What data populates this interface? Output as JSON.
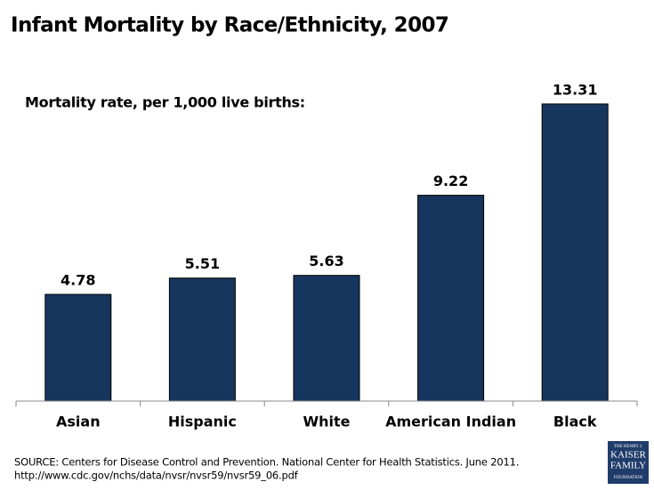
{
  "chart_data": {
    "type": "bar",
    "title": "Infant Mortality by Race/Ethnicity, 2007",
    "subtitle": "Mortality rate, per 1,000 live births:",
    "categories": [
      "Asian",
      "Hispanic",
      "White",
      "American Indian",
      "Black"
    ],
    "values": [
      4.78,
      5.51,
      5.63,
      9.22,
      13.31
    ],
    "color": "#17365d",
    "source": [
      "SOURCE: Centers for Disease Control and Prevention. National Center for Health Statistics. June 2011.",
      "http://www.cdc.gov/nchs/data/nvsr/nvsr59/nvsr59_06.pdf"
    ],
    "logo": [
      "THE HENRY J.",
      "KAISER",
      "FAMILY",
      "FOUNDATION"
    ]
  }
}
